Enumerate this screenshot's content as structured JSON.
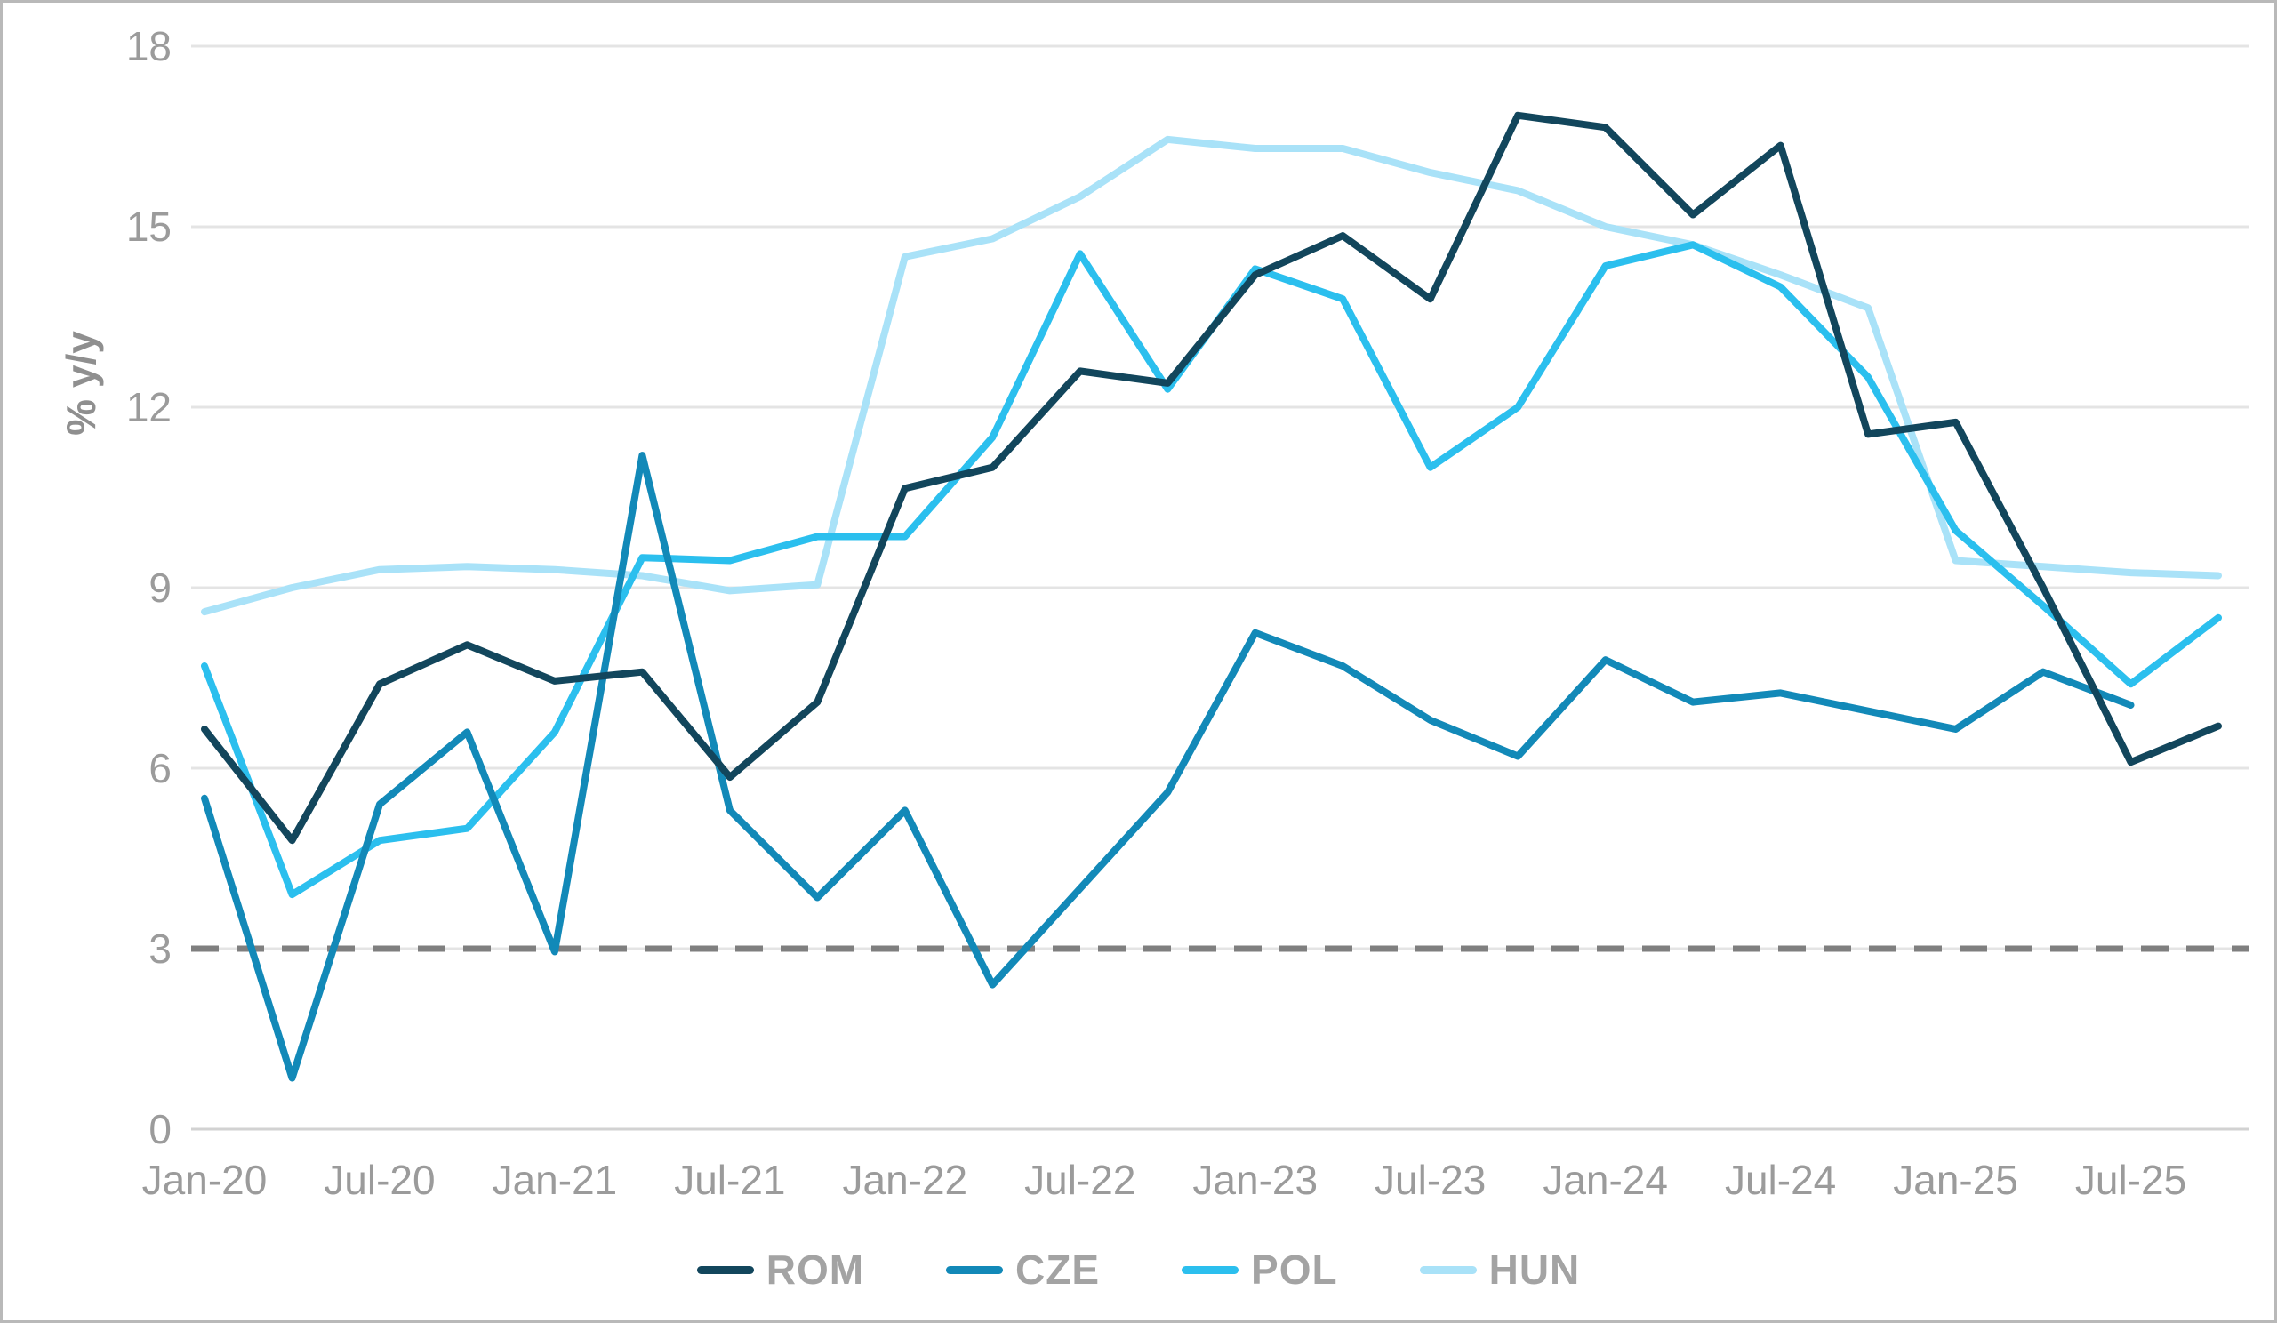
{
  "chart_data": {
    "type": "line",
    "title": "",
    "xlabel": "",
    "ylabel": "% y/y",
    "ylim": [
      0,
      18
    ],
    "yticks": [
      0,
      3,
      6,
      9,
      12,
      15,
      18
    ],
    "grid": true,
    "legend_position": "bottom",
    "x_categories": [
      "Jan-20",
      "Apr-20",
      "Jul-20",
      "Oct-20",
      "Jan-21",
      "Apr-21",
      "Jul-21",
      "Oct-21",
      "Jan-22",
      "Apr-22",
      "Jul-22",
      "Oct-22",
      "Jan-23",
      "Apr-23",
      "Jul-23",
      "Oct-23",
      "Jan-24",
      "Apr-24",
      "Jul-24",
      "Oct-24",
      "Jan-25",
      "Apr-25",
      "Jul-25",
      "Oct-25"
    ],
    "x_tick_labels": [
      "Jan-20",
      "Jul-20",
      "Jan-21",
      "Jul-21",
      "Jan-22",
      "Jul-22",
      "Jan-23",
      "Jul-23",
      "Jan-24",
      "Jul-24",
      "Jan-25",
      "Jul-25"
    ],
    "reference_line": {
      "value": 3,
      "style": "dashed",
      "color": "#7f7f7f"
    },
    "series": [
      {
        "name": "ROM",
        "color": "#12465c",
        "values": [
          6.65,
          4.8,
          7.4,
          8.05,
          7.45,
          7.6,
          5.85,
          7.1,
          10.65,
          11.0,
          12.6,
          12.4,
          14.2,
          14.85,
          13.8,
          16.85,
          16.65,
          15.2,
          16.35,
          11.55,
          11.75,
          9.0,
          6.1,
          6.7
        ]
      },
      {
        "name": "CZE",
        "color": "#1289b8",
        "values": [
          5.5,
          0.85,
          5.4,
          6.6,
          2.95,
          11.2,
          5.3,
          3.85,
          5.3,
          2.4,
          4.0,
          5.6,
          8.25,
          7.7,
          6.8,
          6.2,
          7.8,
          7.1,
          7.25,
          6.95,
          6.65,
          7.6,
          7.05,
          null
        ]
      },
      {
        "name": "POL",
        "color": "#2bbfee",
        "values": [
          7.7,
          3.9,
          4.8,
          5.0,
          6.6,
          9.5,
          9.45,
          9.85,
          9.85,
          11.5,
          14.55,
          12.3,
          14.3,
          13.8,
          11.0,
          12.0,
          14.35,
          14.7,
          14.0,
          12.5,
          9.95,
          8.7,
          7.4,
          8.5
        ]
      },
      {
        "name": "HUN",
        "color": "#a9e2f8",
        "values": [
          8.6,
          9.0,
          9.3,
          9.35,
          9.3,
          9.2,
          8.95,
          9.05,
          14.5,
          14.8,
          15.5,
          16.45,
          16.3,
          16.3,
          15.9,
          15.6,
          15.0,
          14.7,
          14.2,
          13.65,
          9.45,
          9.35,
          9.25,
          9.2
        ]
      }
    ],
    "colors": {
      "grid": "#e4e4e4",
      "axis_line": "#d2d2d2",
      "tick_text": "#9b9b9b",
      "legend_text": "#a3a3a3",
      "reference_dash": "#7f7f7f"
    }
  }
}
